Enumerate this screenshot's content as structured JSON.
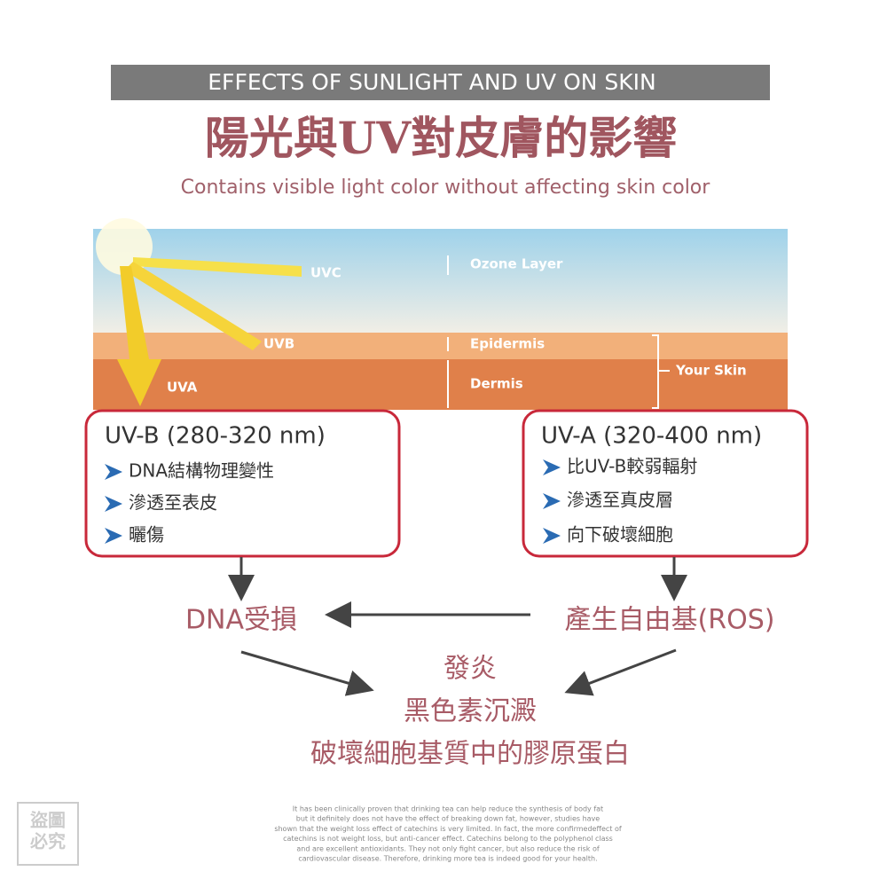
{
  "header": {
    "banner": "EFFECTS OF SUNLIGHT AND UV ON SKIN",
    "title": "陽光與UV對皮膚的影響",
    "subtitle": "Contains visible light color without affecting skin color"
  },
  "illustration": {
    "rays": [
      "UVC",
      "UVB",
      "UVA"
    ],
    "layers": [
      "Ozone Layer",
      "Epidermis",
      "Dermis"
    ],
    "group": "Your Skin"
  },
  "boxes": [
    {
      "title": "UV-B (280-320 nm)",
      "items": [
        "DNA結構物理變性",
        "滲透至表皮",
        "曬傷"
      ]
    },
    {
      "title": "UV-A (320-400 nm)",
      "items": [
        "比UV-B較弱輻射",
        "滲透至真皮層",
        "向下破壞細胞"
      ]
    }
  ],
  "effects": {
    "left": "DNA受損",
    "right": "產生自由基(ROS)",
    "results": [
      "發炎",
      "黑色素沉澱",
      "破壞細胞基質中的膠原蛋白"
    ]
  },
  "watermark": [
    "盜圖",
    "必究"
  ],
  "footer": [
    "It has been clinically proven that drinking tea can help reduce the synthesis of body fat",
    "but it definitely does not have the effect of breaking down fat, however, studies have",
    "shown that the weight loss effect of catechins is very limited. In fact, the more confirmedeffect of",
    "catechins is not weight loss, but anti-cancer effect. Catechins belong to the polyphenol class",
    "and are excellent antioxidants. They not only fight cancer, but also reduce the risk of",
    "cardiovascular disease. Therefore, drinking more tea is indeed good for your health."
  ]
}
